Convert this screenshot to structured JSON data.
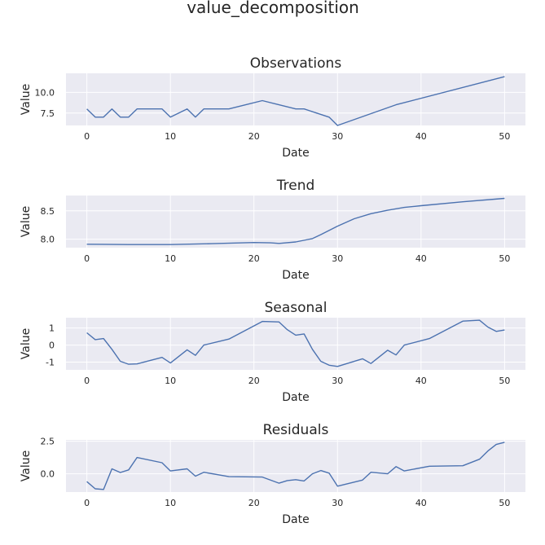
{
  "figure": {
    "title": "value_decomposition"
  },
  "chart_data": [
    {
      "type": "line",
      "title": "Observations",
      "xlabel": "Date",
      "ylabel": "Value",
      "xlim": [
        -2.5,
        52.5
      ],
      "ylim": [
        6.0,
        12.3
      ],
      "xticks": [
        "0",
        "10",
        "20",
        "30",
        "40",
        "50"
      ],
      "xtick_values": [
        0,
        10,
        20,
        30,
        40,
        50
      ],
      "yticks": [
        "7.5",
        "10.0"
      ],
      "ytick_values": [
        7.5,
        10.0
      ],
      "grid": true,
      "x": [
        0,
        1,
        2,
        3,
        4,
        5,
        6,
        7,
        8,
        9,
        10,
        12,
        13,
        14,
        17,
        21,
        25,
        26,
        29,
        30,
        37,
        50
      ],
      "values": [
        8.0,
        7.0,
        7.0,
        8.0,
        7.0,
        7.0,
        8.0,
        8.0,
        8.0,
        8.0,
        7.0,
        8.0,
        7.0,
        8.0,
        8.0,
        9.0,
        8.0,
        8.0,
        7.0,
        6.0,
        8.5,
        11.9
      ]
    },
    {
      "type": "line",
      "title": "Trend",
      "xlabel": "Date",
      "ylabel": "Value",
      "xlim": [
        -2.5,
        52.5
      ],
      "ylim": [
        7.85,
        8.77
      ],
      "xticks": [
        "0",
        "10",
        "20",
        "30",
        "40",
        "50"
      ],
      "xtick_values": [
        0,
        10,
        20,
        30,
        40,
        50
      ],
      "yticks": [
        "8.0",
        "8.5"
      ],
      "ytick_values": [
        8.0,
        8.5
      ],
      "grid": true,
      "x": [
        0,
        5,
        10,
        15,
        20,
        22,
        23,
        25,
        27,
        28,
        30,
        32,
        34,
        36,
        38,
        40,
        45,
        50
      ],
      "values": [
        7.91,
        7.905,
        7.905,
        7.92,
        7.94,
        7.935,
        7.925,
        7.95,
        8.01,
        8.08,
        8.23,
        8.36,
        8.45,
        8.51,
        8.56,
        8.59,
        8.66,
        8.72
      ]
    },
    {
      "type": "line",
      "title": "Seasonal",
      "xlabel": "Date",
      "ylabel": "Value",
      "xlim": [
        -2.5,
        52.5
      ],
      "ylim": [
        -1.45,
        1.6
      ],
      "xticks": [
        "0",
        "10",
        "20",
        "30",
        "40",
        "50"
      ],
      "xtick_values": [
        0,
        10,
        20,
        30,
        40,
        50
      ],
      "yticks": [
        "-1",
        "0",
        "1"
      ],
      "ytick_values": [
        -1,
        0,
        1
      ],
      "grid": true,
      "x": [
        0,
        1,
        2,
        3,
        4,
        5,
        6,
        9,
        10,
        12,
        13,
        14,
        17,
        21,
        23,
        24,
        25,
        26,
        27,
        28,
        29,
        30,
        33,
        34,
        36,
        37,
        38,
        41,
        45,
        47,
        48,
        49,
        50
      ],
      "values": [
        0.72,
        0.32,
        0.38,
        -0.25,
        -0.95,
        -1.12,
        -1.1,
        -0.72,
        -1.05,
        -0.28,
        -0.6,
        0.0,
        0.35,
        1.38,
        1.35,
        0.9,
        0.58,
        0.65,
        -0.25,
        -0.95,
        -1.18,
        -1.25,
        -0.8,
        -1.08,
        -0.3,
        -0.58,
        0.0,
        0.38,
        1.4,
        1.45,
        1.05,
        0.8,
        0.88
      ]
    },
    {
      "type": "line",
      "title": "Residuals",
      "xlabel": "Date",
      "ylabel": "Value",
      "xlim": [
        -2.5,
        52.5
      ],
      "ylim": [
        -1.4,
        2.6
      ],
      "xticks": [
        "0",
        "10",
        "20",
        "30",
        "40",
        "50"
      ],
      "xtick_values": [
        0,
        10,
        20,
        30,
        40,
        50
      ],
      "yticks": [
        "0.0",
        "2.5"
      ],
      "ytick_values": [
        0.0,
        2.5
      ],
      "grid": true,
      "x": [
        0,
        1,
        2,
        3,
        4,
        5,
        6,
        9,
        10,
        12,
        13,
        14,
        17,
        21,
        23,
        24,
        25,
        26,
        27,
        28,
        29,
        30,
        33,
        34,
        36,
        37,
        38,
        41,
        45,
        47,
        48,
        49,
        50
      ],
      "values": [
        -0.6,
        -1.15,
        -1.2,
        0.38,
        0.1,
        0.3,
        1.25,
        0.85,
        0.22,
        0.38,
        -0.18,
        0.12,
        -0.22,
        -0.25,
        -0.72,
        -0.52,
        -0.45,
        -0.55,
        0.0,
        0.25,
        0.05,
        -0.95,
        -0.48,
        0.12,
        0.0,
        0.55,
        0.22,
        0.58,
        0.62,
        1.12,
        1.75,
        2.25,
        2.42
      ]
    }
  ]
}
